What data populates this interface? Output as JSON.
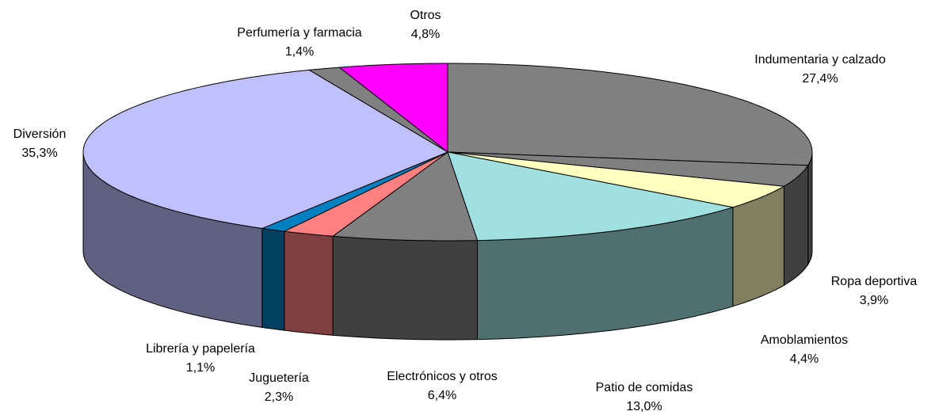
{
  "chart_data": {
    "type": "pie3d",
    "categories": [
      "Indumentaria y calzado",
      "Ropa deportiva",
      "Amoblamientos",
      "Patio de comidas",
      "Electrónicos y otros",
      "Juguetería",
      "Librería y papelería",
      "Diversión",
      "Perfumería y farmacia",
      "Otros"
    ],
    "values": [
      27.4,
      3.9,
      4.4,
      13.0,
      6.4,
      2.3,
      1.1,
      35.3,
      1.4,
      4.8
    ],
    "value_labels": [
      "27,4%",
      "3,9%",
      "4,4%",
      "13,0%",
      "6,4%",
      "2,3%",
      "1,1%",
      "35,3%",
      "1,4%",
      "4,8%"
    ],
    "colors": [
      "#808080",
      "#808080",
      "#ffffc0",
      "#a0e0e0",
      "#808080",
      "#ff8080",
      "#0080c0",
      "#c0c0ff",
      "#808080",
      "#ff00ff"
    ]
  }
}
